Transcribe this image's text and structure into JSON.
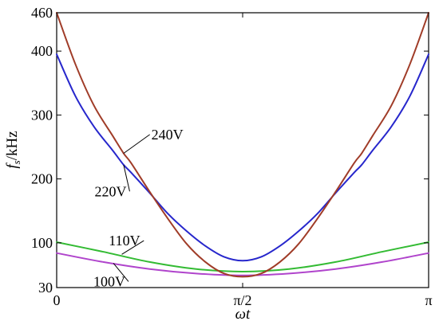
{
  "chart_data": {
    "type": "line",
    "title": "",
    "xlabel": "ωt",
    "ylabel": "fs/kHz",
    "ylabel_parts": {
      "main": "f",
      "sub": "s",
      "unit": "/kHz"
    },
    "xlim": [
      0,
      3.14159
    ],
    "ylim": [
      30,
      460
    ],
    "x_ticks": [
      {
        "value": 0,
        "label": "0"
      },
      {
        "value": 1.5708,
        "label": "π/2"
      },
      {
        "value": 3.14159,
        "label": "π"
      }
    ],
    "y_ticks": [
      {
        "value": 30,
        "label": "30"
      },
      {
        "value": 100,
        "label": "100"
      },
      {
        "value": 200,
        "label": "200"
      },
      {
        "value": 300,
        "label": "300"
      },
      {
        "value": 400,
        "label": "400"
      },
      {
        "value": 460,
        "label": "460"
      }
    ],
    "grid": false,
    "series": [
      {
        "name": "240V",
        "color": "#a03c28",
        "x": [
          0,
          0.1571,
          0.3142,
          0.4712,
          0.5655,
          0.6283,
          0.7854,
          0.9425,
          1.0996,
          1.2566,
          1.4137,
          1.5708,
          1.7279,
          1.885,
          2.042,
          2.1991,
          2.3562,
          2.5133,
          2.5761,
          2.6704,
          2.8274,
          2.9845,
          3.1416
        ],
        "y": [
          460,
          380,
          315,
          268,
          240,
          225,
          180,
          137,
          98,
          70,
          52,
          47,
          52,
          70,
          98,
          137,
          180,
          225,
          240,
          268,
          315,
          380,
          460
        ]
      },
      {
        "name": "220V",
        "color": "#2727cc",
        "x": [
          0,
          0.1571,
          0.3142,
          0.4712,
          0.5655,
          0.6283,
          0.7854,
          0.9425,
          1.0996,
          1.2566,
          1.4137,
          1.5708,
          1.7279,
          1.885,
          2.042,
          2.1991,
          2.3562,
          2.5133,
          2.5761,
          2.6704,
          2.8274,
          2.9845,
          3.1416
        ],
        "y": [
          395,
          330,
          282,
          245,
          222,
          210,
          178,
          145,
          118,
          95,
          78,
          72,
          78,
          95,
          118,
          145,
          178,
          210,
          222,
          245,
          282,
          330,
          395
        ]
      },
      {
        "name": "110V",
        "color": "#33bb33",
        "x": [
          0,
          0.3927,
          0.7854,
          1.1781,
          1.5708,
          1.9635,
          2.3562,
          2.7489,
          3.1416
        ],
        "y": [
          101,
          86,
          70,
          59,
          55,
          59,
          70,
          86,
          101
        ]
      },
      {
        "name": "100V",
        "color": "#b044cc",
        "x": [
          0,
          0.3927,
          0.7854,
          1.1781,
          1.5708,
          1.9635,
          2.3562,
          2.7489,
          3.1416
        ],
        "y": [
          84,
          70,
          59,
          52,
          49,
          52,
          59,
          70,
          84
        ]
      }
    ],
    "annotations": [
      {
        "text": "240V",
        "series": "240V",
        "point": [
          0.5655,
          240
        ],
        "label_at": [
          0.8,
          262
        ]
      },
      {
        "text": "220V",
        "series": "220V",
        "point": [
          0.5655,
          222
        ],
        "label_at": [
          0.32,
          173
        ]
      },
      {
        "text": "110V",
        "series": "110V",
        "point": [
          0.55,
          82
        ],
        "label_at": [
          0.44,
          96
        ]
      },
      {
        "text": "100V",
        "series": "100V",
        "point": [
          0.48,
          68
        ],
        "label_at": [
          0.31,
          32
        ]
      }
    ]
  }
}
